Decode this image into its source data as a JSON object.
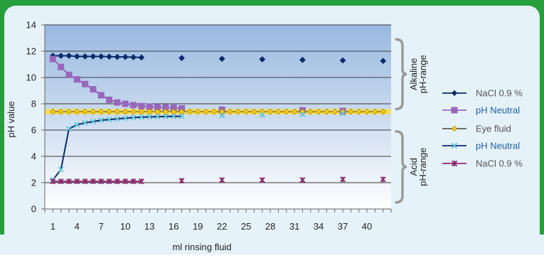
{
  "colors": {
    "frame_green": "#25a03c",
    "panel_bg": "#e6f2fa",
    "plot_top": "#98b8e0",
    "plot_bottom": "#ffffff",
    "neutral_band": "#f6dd5a",
    "bracket_gray": "#9a9a9a",
    "axis_text": "#222222",
    "legend_text_gray": "#555555",
    "legend_text_blue": "#1d5fa8"
  },
  "chart_data": {
    "type": "line",
    "xlabel": "ml rinsing fluid",
    "ylabel": "pH value",
    "ylim": [
      0,
      14
    ],
    "xlim": [
      0,
      43
    ],
    "y_ticks": [
      0,
      2,
      4,
      6,
      8,
      10,
      12,
      14
    ],
    "x_ticks": [
      1,
      4,
      7,
      10,
      13,
      16,
      19,
      22,
      25,
      28,
      31,
      34,
      37,
      40
    ],
    "grid": true,
    "legend_position": "right",
    "neutral_band": [
      7.2,
      7.6
    ],
    "range_labels": [
      {
        "line1": "Alkaline",
        "line2": "pH-range",
        "from": 7.6,
        "to": 12.9
      },
      {
        "line1": "Acid",
        "line2": "pH-range",
        "from": 0.5,
        "to": 5.9
      }
    ],
    "series": [
      {
        "name": "NaCl 0.9 %",
        "line_color": "#0b2a6a",
        "marker_color": "#0b2a6a",
        "marker": "diamond",
        "legend_text_color": "#555555",
        "points": [
          [
            1,
            11.65
          ],
          [
            2,
            11.65
          ],
          [
            3,
            11.65
          ],
          [
            4,
            11.6
          ],
          [
            5,
            11.6
          ],
          [
            6,
            11.6
          ],
          [
            7,
            11.6
          ],
          [
            8,
            11.58
          ],
          [
            9,
            11.56
          ],
          [
            10,
            11.56
          ],
          [
            11,
            11.54
          ],
          [
            12,
            11.52
          ],
          [
            17,
            11.48
          ],
          [
            22,
            11.42
          ],
          [
            27,
            11.38
          ],
          [
            32,
            11.34
          ],
          [
            37,
            11.3
          ],
          [
            42,
            11.26
          ]
        ],
        "line_until": 12
      },
      {
        "name": "pH Neutral",
        "line_color": "#9966bb",
        "marker_color": "#9966bb",
        "marker": "square",
        "legend_text_color": "#1d5fa8",
        "points": [
          [
            1,
            11.4
          ],
          [
            2,
            10.8
          ],
          [
            3,
            10.2
          ],
          [
            4,
            9.85
          ],
          [
            5,
            9.5
          ],
          [
            6,
            9.1
          ],
          [
            7,
            8.65
          ],
          [
            8,
            8.3
          ],
          [
            9,
            8.1
          ],
          [
            10,
            8.0
          ],
          [
            11,
            7.9
          ],
          [
            12,
            7.82
          ],
          [
            13,
            7.78
          ],
          [
            14,
            7.75
          ],
          [
            15,
            7.72
          ],
          [
            16,
            7.7
          ],
          [
            17,
            7.65
          ],
          [
            22,
            7.55
          ],
          [
            32,
            7.5
          ],
          [
            37,
            7.45
          ]
        ],
        "line_until": 17
      },
      {
        "name": "Eye fluid",
        "line_color": "#5a5a5a",
        "marker_color": "#f2cc1a",
        "marker": "diamond",
        "legend_text_color": "#555555",
        "points": [
          [
            1,
            7.4
          ],
          [
            2,
            7.4
          ],
          [
            3,
            7.4
          ],
          [
            4,
            7.4
          ],
          [
            5,
            7.4
          ],
          [
            6,
            7.4
          ],
          [
            7,
            7.4
          ],
          [
            8,
            7.4
          ],
          [
            9,
            7.4
          ],
          [
            10,
            7.4
          ],
          [
            11,
            7.4
          ],
          [
            12,
            7.4
          ],
          [
            13,
            7.4
          ],
          [
            14,
            7.4
          ],
          [
            15,
            7.4
          ],
          [
            16,
            7.4
          ],
          [
            17,
            7.4
          ],
          [
            18,
            7.4
          ],
          [
            19,
            7.4
          ],
          [
            20,
            7.4
          ],
          [
            21,
            7.4
          ],
          [
            22,
            7.4
          ],
          [
            23,
            7.4
          ],
          [
            24,
            7.4
          ],
          [
            25,
            7.4
          ],
          [
            26,
            7.4
          ],
          [
            27,
            7.4
          ],
          [
            28,
            7.4
          ],
          [
            29,
            7.4
          ],
          [
            30,
            7.4
          ],
          [
            31,
            7.4
          ],
          [
            32,
            7.4
          ],
          [
            33,
            7.4
          ],
          [
            34,
            7.4
          ],
          [
            35,
            7.4
          ],
          [
            36,
            7.4
          ],
          [
            37,
            7.4
          ],
          [
            38,
            7.4
          ],
          [
            39,
            7.4
          ],
          [
            40,
            7.4
          ],
          [
            41,
            7.4
          ],
          [
            42,
            7.4
          ]
        ],
        "line_until": 42
      },
      {
        "name": "pH Neutral",
        "line_color": "#0b2a6a",
        "marker_color": "#5ac8d8",
        "marker": "x",
        "legend_text_color": "#1d5fa8",
        "points": [
          [
            1,
            2.2
          ],
          [
            2,
            3.0
          ],
          [
            3,
            6.1
          ],
          [
            4,
            6.4
          ],
          [
            5,
            6.55
          ],
          [
            6,
            6.65
          ],
          [
            7,
            6.75
          ],
          [
            8,
            6.8
          ],
          [
            9,
            6.85
          ],
          [
            10,
            6.9
          ],
          [
            11,
            6.95
          ],
          [
            12,
            6.98
          ],
          [
            13,
            7.0
          ],
          [
            14,
            7.02
          ],
          [
            15,
            7.03
          ],
          [
            16,
            7.04
          ],
          [
            17,
            7.05
          ],
          [
            22,
            7.1
          ],
          [
            27,
            7.15
          ],
          [
            32,
            7.2
          ],
          [
            37,
            7.25
          ]
        ],
        "line_until": 17
      },
      {
        "name": "NaCl 0.9 %",
        "line_color": "#8a2a70",
        "marker_color": "#8a2a70",
        "marker": "star",
        "legend_text_color": "#555555",
        "points": [
          [
            1,
            2.1
          ],
          [
            2,
            2.1
          ],
          [
            3,
            2.1
          ],
          [
            4,
            2.1
          ],
          [
            5,
            2.1
          ],
          [
            6,
            2.1
          ],
          [
            7,
            2.1
          ],
          [
            8,
            2.1
          ],
          [
            9,
            2.1
          ],
          [
            10,
            2.1
          ],
          [
            11,
            2.1
          ],
          [
            12,
            2.1
          ],
          [
            17,
            2.15
          ],
          [
            22,
            2.2
          ],
          [
            27,
            2.2
          ],
          [
            32,
            2.2
          ],
          [
            37,
            2.25
          ],
          [
            42,
            2.25
          ]
        ],
        "line_until": 12
      }
    ]
  }
}
